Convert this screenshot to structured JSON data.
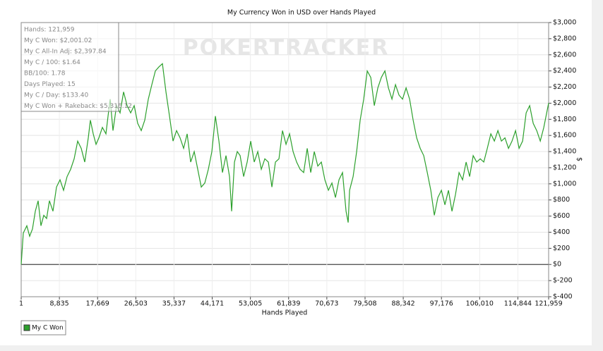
{
  "chart_data": {
    "type": "line",
    "title": "My Currency Won in USD over Hands Played",
    "x_label": "Hands Played",
    "y_label": "$",
    "watermark": "POKERTRACKER",
    "stats": [
      "Hands: 121,959",
      "My C Won: $2,001.02",
      "My C All-In Adj: $2,397.84",
      "My C / 100: $1.64",
      "BB/100: 1.78",
      "Days Played: 15",
      "My C / Day: $133.40",
      "My C Won + Rakeback: $5,316.12"
    ],
    "grid": true,
    "legend": "bottom-left",
    "x": [
      1,
      490,
      1306,
      1960,
      2613,
      3266,
      3919,
      4572,
      5226,
      5879,
      6532,
      7349,
      8165,
      8982,
      9798,
      10615,
      11431,
      12248,
      13064,
      13881,
      14697,
      15514,
      16003,
      16657,
      17310,
      17963,
      18780,
      19596,
      20086,
      20576,
      21229,
      22046,
      22862,
      23679,
      24495,
      25312,
      26128,
      26945,
      27761,
      28578,
      29394,
      30211,
      31027,
      31844,
      32660,
      33477,
      34293,
      35110,
      35926,
      36743,
      37559,
      38376,
      39192,
      40009,
      40825,
      41642,
      42458,
      43275,
      44091,
      44908,
      45724,
      46541,
      47357,
      48174,
      48663,
      49317,
      49970,
      50623,
      51440,
      52256,
      53073,
      53889,
      54706,
      55522,
      56339,
      57155,
      57972,
      58788,
      59605,
      60421,
      61238,
      62054,
      62871,
      63687,
      64504,
      65320,
      66137,
      66953,
      67770,
      68586,
      69403,
      70219,
      71036,
      71852,
      72669,
      73485,
      74302,
      75118,
      75608,
      75935,
      76751,
      77568,
      78384,
      79201,
      80017,
      80834,
      81650,
      82467,
      83283,
      84100,
      84916,
      85733,
      86549,
      87366,
      88182,
      88999,
      89815,
      90632,
      91448,
      92265,
      93081,
      93898,
      94714,
      95531,
      96347,
      97164,
      97980,
      98797,
      99613,
      100430,
      101246,
      102063,
      102879,
      103696,
      104512,
      105329,
      106145,
      106962,
      107778,
      108595,
      109411,
      110228,
      111044,
      111861,
      112677,
      113494,
      114310,
      115127,
      115943,
      116760,
      117576,
      118393,
      119209,
      120026,
      120842,
      121959
    ],
    "series": [
      {
        "name": "My C Won",
        "color": "#2ca02c",
        "values": [
          0,
          390,
          480,
          350,
          440,
          660,
          790,
          480,
          610,
          570,
          790,
          660,
          960,
          1050,
          920,
          1090,
          1180,
          1310,
          1530,
          1440,
          1270,
          1570,
          1790,
          1620,
          1490,
          1570,
          1700,
          1620,
          1840,
          2050,
          1660,
          1970,
          1880,
          2140,
          1970,
          1880,
          1970,
          1750,
          1660,
          1790,
          2050,
          2230,
          2400,
          2450,
          2490,
          2140,
          1840,
          1530,
          1660,
          1570,
          1440,
          1620,
          1270,
          1400,
          1180,
          960,
          1010,
          1180,
          1400,
          1840,
          1530,
          1140,
          1350,
          1090,
          660,
          1270,
          1400,
          1350,
          1090,
          1270,
          1530,
          1270,
          1400,
          1180,
          1310,
          1270,
          960,
          1270,
          1310,
          1660,
          1490,
          1620,
          1400,
          1270,
          1180,
          1140,
          1440,
          1140,
          1400,
          1220,
          1270,
          1050,
          920,
          1010,
          830,
          1050,
          1140,
          660,
          520,
          920,
          1090,
          1400,
          1790,
          2050,
          2400,
          2320,
          1970,
          2190,
          2320,
          2400,
          2190,
          2050,
          2230,
          2100,
          2050,
          2190,
          2050,
          1790,
          1570,
          1440,
          1350,
          1140,
          920,
          610,
          830,
          920,
          740,
          920,
          660,
          870,
          1140,
          1050,
          1270,
          1090,
          1350,
          1270,
          1310,
          1270,
          1440,
          1620,
          1530,
          1660,
          1530,
          1570,
          1440,
          1530,
          1660,
          1440,
          1530,
          1880,
          1970,
          1750,
          1660,
          1530,
          1700,
          2001
        ]
      }
    ],
    "xlim": [
      1,
      121959
    ],
    "xticks": [
      1,
      {
        "value": 8835,
        "label": "8,835"
      },
      {
        "value": 17669,
        "label": "17,669"
      },
      {
        "value": 26503,
        "label": "26,503"
      },
      {
        "value": 35337,
        "label": "35,337"
      },
      {
        "value": 44171,
        "label": "44,171"
      },
      {
        "value": 53005,
        "label": "53,005"
      },
      {
        "value": 61839,
        "label": "61,839"
      },
      {
        "value": 70673,
        "label": "70,673"
      },
      {
        "value": 79508,
        "label": "79,508"
      },
      {
        "value": 88342,
        "label": "88,342"
      },
      {
        "value": 97176,
        "label": "97,176"
      },
      {
        "value": 106010,
        "label": "106,010"
      },
      {
        "value": 114844,
        "label": "114,844"
      },
      {
        "value": 121959,
        "label": "121,959"
      }
    ],
    "ylim": [
      -400,
      3000
    ],
    "yticks": [
      {
        "value": -400,
        "label": "$-400"
      },
      {
        "value": -200,
        "label": "$-200"
      },
      {
        "value": 0,
        "label": "$0"
      },
      {
        "value": 200,
        "label": "$200"
      },
      {
        "value": 400,
        "label": "$400"
      },
      {
        "value": 600,
        "label": "$600"
      },
      {
        "value": 800,
        "label": "$800"
      },
      {
        "value": 1000,
        "label": "$1,000"
      },
      {
        "value": 1200,
        "label": "$1,200"
      },
      {
        "value": 1400,
        "label": "$1,400"
      },
      {
        "value": 1600,
        "label": "$1,600"
      },
      {
        "value": 1800,
        "label": "$1,800"
      },
      {
        "value": 2000,
        "label": "$2,000"
      },
      {
        "value": 2200,
        "label": "$2,200"
      },
      {
        "value": 2400,
        "label": "$2,400"
      },
      {
        "value": 2600,
        "label": "$2,600"
      },
      {
        "value": 2800,
        "label": "$2,800"
      },
      {
        "value": 3000,
        "label": "$3,000"
      }
    ]
  }
}
